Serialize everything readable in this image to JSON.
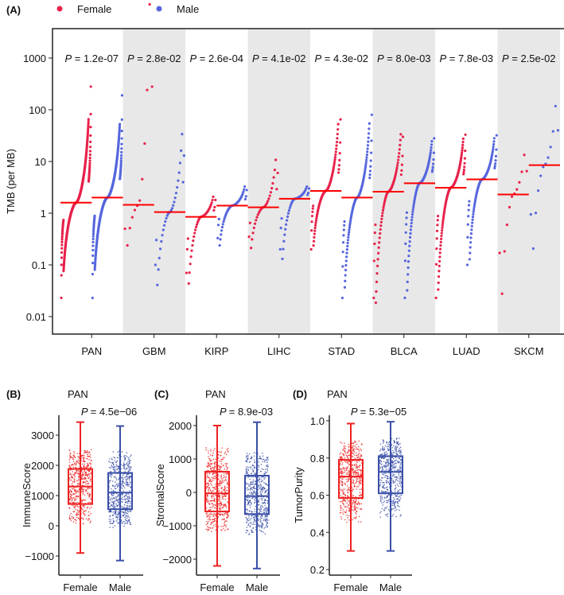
{
  "chart_data": [
    {
      "type": "scatter",
      "panel_label": "(A)",
      "legend": [
        {
          "name": "Female",
          "color": "#e8214a"
        },
        {
          "name": "Male",
          "color": "#5566dd"
        }
      ],
      "legend_placement": "top-left",
      "ylabel": "TMB (per MB)",
      "yscale": "log",
      "ylim": [
        0.005,
        3000
      ],
      "yticks": [
        "0.01",
        "0.1",
        "1",
        "10",
        "100",
        "1000"
      ],
      "median_line_color": "#ff0000",
      "band_color": "#e8e8e8",
      "categories": [
        "PAN",
        "GBM",
        "KIRP",
        "LIHC",
        "STAD",
        "BLCA",
        "LUAD",
        "SKCM"
      ],
      "p_values": [
        "1.2e-07",
        "2.8e-02",
        "2.6e-04",
        "4.1e-02",
        "4.3e-02",
        "8.0e-03",
        "7.8e-03",
        "2.5e-02"
      ],
      "p_prefix": "P",
      "female": {
        "min": [
          0.023,
          0.5,
          0.07,
          0.35,
          0.2,
          0.023,
          0.023,
          0.17
        ],
        "median": [
          1.6,
          1.45,
          0.85,
          1.3,
          2.7,
          2.6,
          3.1,
          2.3
        ],
        "max": [
          280,
          280,
          1.8,
          6,
          65,
          30,
          33,
          6.5
        ],
        "n": [
          300,
          12,
          40,
          30,
          90,
          70,
          110,
          12
        ]
      },
      "male": {
        "min": [
          0.023,
          0.1,
          0.33,
          0.2,
          0.023,
          0.023,
          0.1,
          0.95
        ],
        "median": [
          2.0,
          1.05,
          1.4,
          1.9,
          2.0,
          3.8,
          4.5,
          8.5
        ],
        "max": [
          190,
          13,
          2.8,
          3,
          80,
          28,
          32,
          40
        ],
        "n": [
          300,
          30,
          45,
          40,
          100,
          90,
          90,
          12
        ]
      }
    },
    {
      "type": "box",
      "panel_label": "(B)",
      "title": "PAN",
      "p_text": "= 4.5e−06",
      "p_prefix": "P",
      "ylabel": "ImmuneScore",
      "yticks": [
        "−1000",
        "0",
        "1000",
        "2000",
        "3000"
      ],
      "ytick_values": [
        -1000,
        0,
        1000,
        2000,
        3000
      ],
      "categories": [
        "Female",
        "Male"
      ],
      "colors": [
        "#ee2222",
        "#3a4fa8"
      ],
      "stats": [
        {
          "min": -900,
          "q1": 720,
          "median": 1300,
          "q3": 1880,
          "max": 3430
        },
        {
          "min": -1150,
          "q1": 550,
          "median": 1100,
          "q3": 1750,
          "max": 3300
        }
      ]
    },
    {
      "type": "box",
      "panel_label": "(C)",
      "title": "PAN",
      "p_text": "= 8.9e-03",
      "p_prefix": "P",
      "ylabel": "StromalScore",
      "yticks": [
        "−2000",
        "−1000",
        "0",
        "1000",
        "2000"
      ],
      "ytick_values": [
        -2000,
        -1000,
        0,
        1000,
        2000
      ],
      "categories": [
        "Female",
        "Male"
      ],
      "colors": [
        "#ee2222",
        "#3a4fa8"
      ],
      "stats": [
        {
          "min": -2200,
          "q1": -570,
          "median": -30,
          "q3": 620,
          "max": 2000
        },
        {
          "min": -2280,
          "q1": -650,
          "median": -110,
          "q3": 500,
          "max": 2100
        }
      ]
    },
    {
      "type": "box",
      "panel_label": "(D)",
      "title": "PAN",
      "p_text": "= 5.3e−05",
      "p_prefix": "P",
      "ylabel": "TumorPurity",
      "yticks": [
        "0.2",
        "0.4",
        "0.6",
        "0.8",
        "1.0"
      ],
      "ytick_values": [
        0.2,
        0.4,
        0.6,
        0.8,
        1.0
      ],
      "categories": [
        "Female",
        "Male"
      ],
      "colors": [
        "#ee2222",
        "#3a4fa8"
      ],
      "stats": [
        {
          "min": 0.3,
          "q1": 0.585,
          "median": 0.7,
          "q3": 0.79,
          "max": 0.985
        },
        {
          "min": 0.3,
          "q1": 0.61,
          "median": 0.725,
          "q3": 0.81,
          "max": 0.995
        }
      ]
    }
  ]
}
